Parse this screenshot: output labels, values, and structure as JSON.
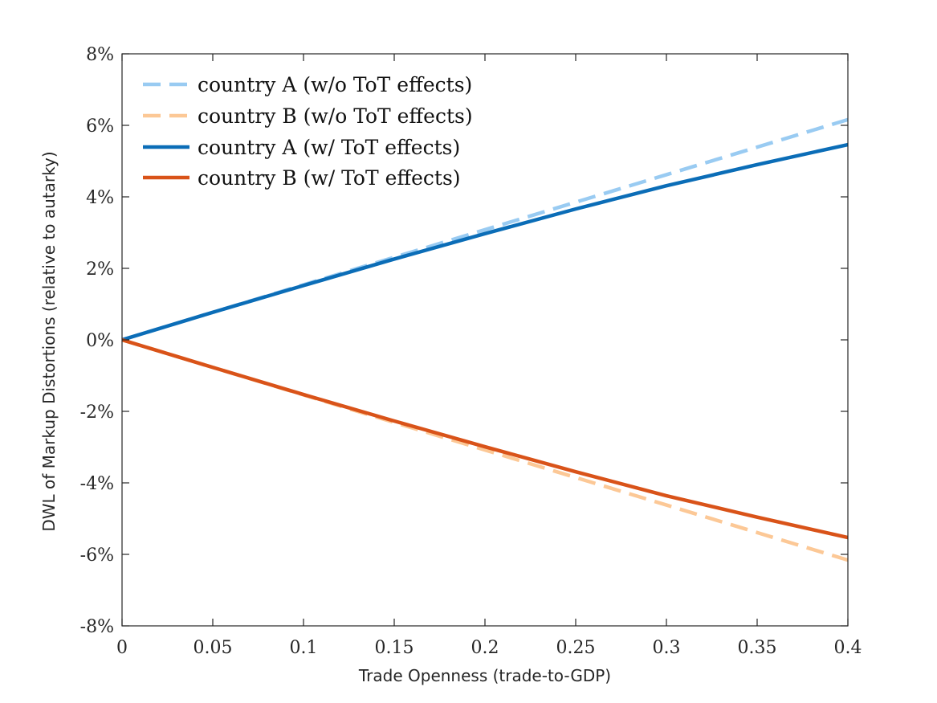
{
  "chart_data": {
    "type": "line",
    "title": "",
    "xlabel": "Trade Openness (trade-to-GDP)",
    "ylabel": "DWL of Markup Distortions (relative to autarky)",
    "xlim": [
      0,
      0.4
    ],
    "ylim": [
      -0.08,
      0.08
    ],
    "x_ticks": [
      0,
      0.05,
      0.1,
      0.15,
      0.2,
      0.25,
      0.3,
      0.35,
      0.4
    ],
    "x_tick_labels": [
      "0",
      "0.05",
      "0.1",
      "0.15",
      "0.2",
      "0.25",
      "0.3",
      "0.35",
      "0.4"
    ],
    "y_ticks": [
      -0.08,
      -0.06,
      -0.04,
      -0.02,
      0,
      0.02,
      0.04,
      0.06,
      0.08
    ],
    "y_tick_labels": [
      "-8%",
      "-6%",
      "-4%",
      "-2%",
      "0%",
      "2%",
      "4%",
      "6%",
      "8%"
    ],
    "grid": false,
    "legend_position": "top-left",
    "x": [
      0,
      0.05,
      0.1,
      0.15,
      0.2,
      0.25,
      0.3,
      0.35,
      0.4
    ],
    "series": [
      {
        "name": "country A (w/o ToT effects)",
        "color": "#99cbf2",
        "dash": "dashed",
        "values": [
          0,
          0.0077,
          0.0154,
          0.0231,
          0.0308,
          0.0385,
          0.0462,
          0.0539,
          0.0616
        ]
      },
      {
        "name": "country B (w/o ToT effects)",
        "color": "#fcc896",
        "dash": "dashed",
        "values": [
          0,
          -0.0077,
          -0.0154,
          -0.0231,
          -0.0308,
          -0.0385,
          -0.0462,
          -0.0539,
          -0.0616
        ]
      },
      {
        "name": "country A (w/ ToT effects)",
        "color": "#0b6db7",
        "dash": "solid",
        "values": [
          0,
          0.0077,
          0.0152,
          0.0226,
          0.0297,
          0.0366,
          0.0431,
          0.049,
          0.0546
        ]
      },
      {
        "name": "country B (w/ ToT effects)",
        "color": "#d95319",
        "dash": "solid",
        "values": [
          0,
          -0.0077,
          -0.0153,
          -0.0227,
          -0.0299,
          -0.0369,
          -0.0436,
          -0.0496,
          -0.0553
        ]
      }
    ]
  }
}
